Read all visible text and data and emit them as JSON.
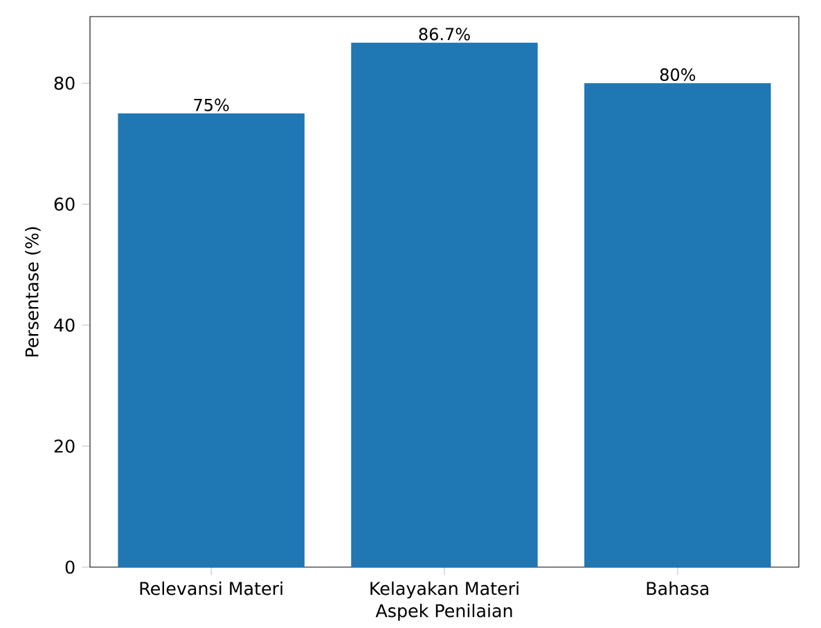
{
  "chart_data": {
    "type": "bar",
    "xlabel": "Aspek Penilaian",
    "ylabel": "Persentase (%)",
    "categories": [
      "Relevansi Materi",
      "Kelayakan Materi",
      "Bahasa"
    ],
    "values": [
      75,
      86.7,
      80
    ],
    "value_labels": [
      "75%",
      "86.7%",
      "80%"
    ],
    "color": "#1f77b4",
    "ylim": [
      0,
      91
    ],
    "yticks": [
      0,
      20,
      40,
      60,
      80
    ]
  }
}
